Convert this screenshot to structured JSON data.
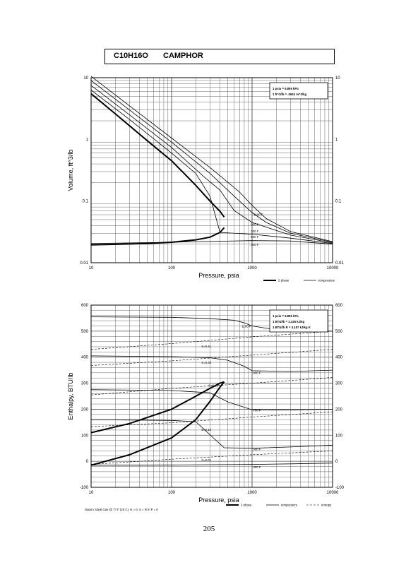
{
  "header": {
    "formula": "C10H16O",
    "compound": "CAMPHOR"
  },
  "page_number": "205",
  "chart_data": [
    {
      "type": "line",
      "x_scale": "log",
      "y_scale": "log",
      "xlabel": "Pressure,  psia",
      "ylabel": "Volume, ft^3/lb",
      "xlim": [
        10,
        10000
      ],
      "ylim": [
        0.01,
        10
      ],
      "x_ticks": [
        "10",
        "100",
        "1000",
        "10000"
      ],
      "y_ticks": [
        "0.01",
        "0.1",
        "1",
        "10"
      ],
      "y_ticks_right": [
        "0.01",
        "0.1",
        "1",
        "10"
      ],
      "conversion_box": [
        "1 psia  =  6.895 kPa",
        "1 ft^3/lb  =  .0624 m^3/kg"
      ],
      "legend": [
        "2 phase",
        "temperature"
      ],
      "two_phase": {
        "liquid": [
          [
            10,
            0.0195
          ],
          [
            50,
            0.0205
          ],
          [
            100,
            0.0215
          ],
          [
            200,
            0.0235
          ],
          [
            300,
            0.026
          ],
          [
            400,
            0.031
          ],
          [
            450,
            0.037
          ]
        ],
        "vapor": [
          [
            10,
            5.5
          ],
          [
            20,
            2.6
          ],
          [
            50,
            0.95
          ],
          [
            100,
            0.45
          ],
          [
            200,
            0.18
          ],
          [
            300,
            0.1
          ],
          [
            400,
            0.068
          ],
          [
            450,
            0.055
          ]
        ]
      },
      "isotherms": [
        {
          "label": "1100 F",
          "points": [
            [
              10,
              10.5
            ],
            [
              30,
              3.5
            ],
            [
              100,
              1.05
            ],
            [
              300,
              0.35
            ],
            [
              700,
              0.14
            ],
            [
              1000,
              0.085
            ],
            [
              1500,
              0.052
            ],
            [
              3000,
              0.032
            ],
            [
              10000,
              0.022
            ]
          ]
        },
        {
          "label": "900 F",
          "points": [
            [
              10,
              9.0
            ],
            [
              30,
              3.0
            ],
            [
              100,
              0.9
            ],
            [
              300,
              0.28
            ],
            [
              600,
              0.12
            ],
            [
              1000,
              0.065
            ],
            [
              1500,
              0.045
            ],
            [
              3000,
              0.03
            ],
            [
              10000,
              0.0215
            ]
          ]
        },
        {
          "label": "700 F",
          "points": [
            [
              10,
              7.5
            ],
            [
              30,
              2.5
            ],
            [
              100,
              0.74
            ],
            [
              250,
              0.25
            ],
            [
              400,
              0.15
            ],
            [
              600,
              0.07
            ],
            [
              1000,
              0.045
            ],
            [
              3000,
              0.028
            ],
            [
              10000,
              0.021
            ]
          ]
        },
        {
          "label": "500 F",
          "points": [
            [
              10,
              6.3
            ],
            [
              30,
              2.1
            ],
            [
              100,
              0.6
            ],
            [
              200,
              0.28
            ],
            [
              300,
              0.12
            ],
            [
              400,
              0.031
            ],
            [
              1000,
              0.029
            ],
            [
              3000,
              0.025
            ],
            [
              10000,
              0.0205
            ]
          ]
        },
        {
          "label": "300 F",
          "points": [
            [
              10,
              0.0205
            ],
            [
              100,
              0.0215
            ],
            [
              1000,
              0.0228
            ],
            [
              3000,
              0.0225
            ],
            [
              10000,
              0.02
            ]
          ]
        }
      ]
    },
    {
      "type": "line",
      "x_scale": "log",
      "y_scale": "linear",
      "xlabel": "Pressure,  psia",
      "ylabel": "Enthalpy, BTU/lb",
      "xlim": [
        10,
        10000
      ],
      "ylim": [
        -100,
        600
      ],
      "x_ticks": [
        "10",
        "100",
        "1000",
        "10000"
      ],
      "y_ticks": [
        "-100",
        "0",
        "100",
        "200",
        "300",
        "400",
        "500",
        "600"
      ],
      "y_ticks_right": [
        "-100",
        "0",
        "100",
        "200",
        "300",
        "400",
        "500",
        "600"
      ],
      "conversion_box": [
        "1 psia  =  6.895 kPa",
        "1 BTU/lb  =  2.326 kJ/kg",
        "1 BTU/lb R  =  4.187 kJ/kg K"
      ],
      "legend": [
        "2 phase",
        "temperature",
        "entropy"
      ],
      "datum_note": "Datum: Ideal Gas @ 77 F (25 C), H = 0, S = R ln P = 0",
      "two_phase": {
        "liquid": [
          [
            10,
            -15
          ],
          [
            30,
            25
          ],
          [
            100,
            90
          ],
          [
            200,
            160
          ],
          [
            300,
            230
          ],
          [
            400,
            285
          ],
          [
            450,
            305
          ]
        ],
        "vapor": [
          [
            10,
            110
          ],
          [
            30,
            145
          ],
          [
            100,
            200
          ],
          [
            200,
            250
          ],
          [
            300,
            280
          ],
          [
            400,
            300
          ],
          [
            450,
            305
          ]
        ]
      },
      "isotherms": [
        {
          "label": "1100 F",
          "points": [
            [
              10,
              555
            ],
            [
              100,
              553
            ],
            [
              300,
              548
            ],
            [
              600,
              542
            ],
            [
              800,
              532
            ],
            [
              1000,
              520
            ],
            [
              2000,
              505
            ],
            [
              10000,
              500
            ]
          ]
        },
        {
          "label": "900 F",
          "points": [
            [
              10,
              405
            ],
            [
              100,
              402
            ],
            [
              300,
              398
            ],
            [
              500,
              388
            ],
            [
              800,
              365
            ],
            [
              1000,
              348
            ],
            [
              3000,
              345
            ],
            [
              10000,
              350
            ]
          ]
        },
        {
          "label": "700 F",
          "points": [
            [
              10,
              275
            ],
            [
              100,
              272
            ],
            [
              300,
              263
            ],
            [
              500,
              228
            ],
            [
              1000,
              198
            ],
            [
              3000,
              197
            ],
            [
              10000,
              200
            ]
          ]
        },
        {
          "label": "500 F",
          "points": [
            [
              10,
              160
            ],
            [
              100,
              157
            ],
            [
              200,
              152
            ],
            [
              450,
              52
            ],
            [
              1000,
              50
            ],
            [
              3000,
              55
            ],
            [
              10000,
              62
            ]
          ]
        },
        {
          "label": "300 F",
          "points": [
            [
              10,
              -15
            ],
            [
              100,
              -14
            ],
            [
              1000,
              -12
            ],
            [
              3000,
              -10
            ],
            [
              10000,
              -7
            ]
          ]
        }
      ],
      "entropy_lines": [
        {
          "label": "S=0.41",
          "points": [
            [
              10,
              430
            ],
            [
              100,
              452
            ],
            [
              1000,
              478
            ],
            [
              10000,
              500
            ]
          ]
        },
        {
          "label": "S=0.34",
          "points": [
            [
              10,
              368
            ],
            [
              100,
              386
            ],
            [
              1000,
              408
            ],
            [
              10000,
              430
            ]
          ]
        },
        {
          "label": "S=0.22",
          "points": [
            [
              10,
              255
            ],
            [
              100,
              280
            ],
            [
              1000,
              300
            ],
            [
              10000,
              322
            ]
          ]
        },
        {
          "label": "S=0.10",
          "points": [
            [
              10,
              133
            ],
            [
              100,
              148
            ],
            [
              1000,
              170
            ],
            [
              10000,
              190
            ]
          ]
        },
        {
          "label": "S=0.01",
          "points": [
            [
              10,
              -12
            ],
            [
              100,
              8
            ],
            [
              1000,
              25
            ],
            [
              10000,
              40
            ]
          ]
        }
      ]
    }
  ]
}
